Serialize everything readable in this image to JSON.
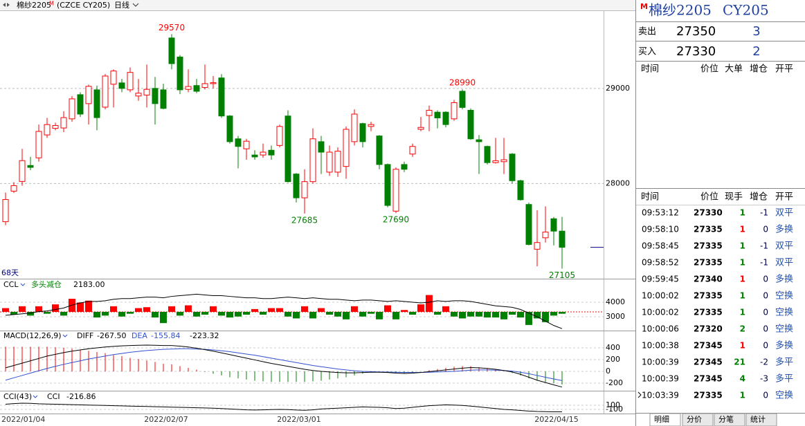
{
  "header": {
    "symbol": "棉纱2205",
    "badge": "M",
    "code": "(CZCE CY205)",
    "period": "日线",
    "days": "68天"
  },
  "chart_data": {
    "type": "candlestick",
    "up_color": "#ff0000",
    "down_color": "#008000",
    "categories": [
      "2022/01/04",
      null,
      null,
      null,
      null,
      null,
      null,
      null,
      null,
      null,
      null,
      null,
      null,
      null,
      null,
      null,
      null,
      null,
      null,
      "2022/02/07",
      null,
      null,
      null,
      null,
      null,
      null,
      null,
      null,
      null,
      null,
      null,
      null,
      null,
      null,
      null,
      "2022/03/01",
      null,
      null,
      null,
      null,
      null,
      null,
      null,
      null,
      null,
      null,
      null,
      null,
      null,
      null,
      null,
      null,
      null,
      null,
      null,
      null,
      null,
      null,
      null,
      null,
      null,
      null,
      null,
      null,
      null,
      null,
      "2022/04/15",
      null
    ],
    "open": [
      27599,
      27920,
      28022,
      28190,
      28270,
      28511,
      28580,
      28584,
      28680,
      28934,
      28840,
      28985,
      28803,
      29044,
      29058,
      28985,
      28920,
      28930,
      29000,
      28985,
      29530,
      29330,
      28990,
      29030,
      29010,
      29050,
      29110,
      28710,
      28470,
      28365,
      28300,
      28300,
      28350,
      28400,
      28710,
      28100,
      27850,
      28020,
      28440,
      28120,
      28120,
      28180,
      28440,
      28630,
      28600,
      28500,
      28200,
      27710,
      28200,
      28310,
      28570,
      28715,
      28750,
      28750,
      28680,
      28970,
      28770,
      28460,
      28390,
      28220,
      28230,
      28310,
      28030,
      27780,
      27310,
      27430,
      27630,
      27500
    ],
    "high": [
      27905,
      28015,
      28365,
      28280,
      28620,
      28690,
      28640,
      28760,
      28920,
      28960,
      29040,
      29030,
      29150,
      29200,
      29100,
      29220,
      29100,
      29250,
      29120,
      29050,
      29570,
      29350,
      29200,
      29100,
      29250,
      29130,
      29150,
      28720,
      28500,
      28470,
      28350,
      28420,
      28400,
      28620,
      28770,
      28110,
      28150,
      28580,
      28500,
      28400,
      28380,
      28600,
      28780,
      28640,
      28650,
      28510,
      28210,
      28170,
      28230,
      28420,
      28700,
      28820,
      28770,
      28760,
      28880,
      28990,
      28790,
      28510,
      28400,
      28480,
      28480,
      28320,
      28040,
      27800,
      27720,
      27760,
      27650,
      27650
    ],
    "low": [
      27562,
      27900,
      27978,
      28140,
      28230,
      28480,
      28560,
      28540,
      28650,
      28700,
      28620,
      28560,
      28780,
      28800,
      28960,
      28960,
      28870,
      28800,
      28620,
      28780,
      29200,
      28940,
      28960,
      28950,
      28990,
      29000,
      28690,
      28420,
      28160,
      28250,
      28250,
      28270,
      28250,
      28380,
      28010,
      27800,
      27685,
      28000,
      28100,
      28080,
      28070,
      28050,
      28400,
      28380,
      28550,
      28150,
      27750,
      27690,
      28120,
      28280,
      28550,
      28550,
      28580,
      28590,
      28660,
      28780,
      28460,
      28100,
      28200,
      28210,
      28100,
      28000,
      27820,
      27350,
      27130,
      27380,
      27350,
      27105
    ],
    "close": [
      27832,
      27978,
      28241,
      28170,
      28548,
      28620,
      28610,
      28693,
      28890,
      28730,
      29022,
      28693,
      29130,
      29183,
      29000,
      29168,
      28950,
      28990,
      28840,
      28790,
      29260,
      28985,
      29020,
      28970,
      29050,
      29060,
      28710,
      28440,
      28390,
      28445,
      28280,
      28330,
      28300,
      28600,
      28020,
      27850,
      28020,
      28470,
      28330,
      28330,
      28340,
      28570,
      28730,
      28440,
      28620,
      28200,
      27770,
      28150,
      28150,
      28390,
      28590,
      28770,
      28690,
      28620,
      28850,
      28800,
      28470,
      28440,
      28220,
      28240,
      28250,
      28030,
      27830,
      27360,
      27380,
      27490,
      27500,
      27330
    ],
    "annotations": [
      29570,
      28990,
      27685,
      27690,
      27105
    ],
    "ylim": [
      27000,
      29820
    ],
    "yticks": [
      28000,
      29000
    ],
    "grid": true,
    "indicators": {
      "ccl": {
        "name": "CCL",
        "status": "多头减仓",
        "value": "2183.00",
        "line_color": "#000000",
        "ylim": [
          2050,
          5520
        ],
        "yticks": [
          3000,
          4000
        ],
        "bar_ylim": [
          -1000,
          1700
        ],
        "line": [
          3100,
          3150,
          3200,
          3250,
          3350,
          3400,
          3500,
          3600,
          3800,
          3950,
          4050,
          4050,
          4100,
          4200,
          4250,
          4250,
          4300,
          4350,
          4350,
          4300,
          4400,
          4450,
          4500,
          4550,
          4500,
          4450,
          4450,
          4400,
          4350,
          4300,
          4300,
          4250,
          4250,
          4300,
          4350,
          4300,
          4250,
          4300,
          4250,
          4200,
          4200,
          4150,
          4100,
          4150,
          4150,
          4100,
          4050,
          4100,
          4050,
          4000,
          3950,
          4000,
          4100,
          4050,
          4100,
          4100,
          4050,
          3950,
          3850,
          3750,
          3700,
          3650,
          3500,
          3250,
          3000,
          2700,
          2400,
          2183
        ],
        "change": [
          200,
          -150,
          300,
          -200,
          300,
          -100,
          400,
          -200,
          700,
          500,
          600,
          -300,
          -200,
          300,
          -250,
          -100,
          200,
          250,
          -300,
          -600,
          300,
          -200,
          350,
          -250,
          -150,
          300,
          -200,
          -300,
          -250,
          -150,
          150,
          -150,
          200,
          200,
          -250,
          -350,
          300,
          -350,
          200,
          -150,
          -250,
          -400,
          300,
          -250,
          -100,
          -400,
          350,
          -400,
          100,
          -150,
          400,
          900,
          -150,
          300,
          -250,
          -350,
          -250,
          -250,
          -300,
          -300,
          -400,
          -150,
          -300,
          -700,
          -350,
          -550,
          -200,
          -100
        ]
      },
      "macd": {
        "name": "MACD(12,26,9)",
        "diff_label": "DIFF",
        "diff_value": "-267.50",
        "dea_label": "DEA",
        "dea_value": "-155.84",
        "macd_value": "-223.32",
        "diff_color": "#000000",
        "dea_color": "#3050d0",
        "ylim": [
          -330,
          530
        ],
        "yticks": [
          -200,
          0,
          200,
          400
        ],
        "diff": [
          60,
          100,
          140,
          180,
          220,
          260,
          290,
          320,
          345,
          365,
          385,
          400,
          415,
          425,
          435,
          440,
          445,
          448,
          445,
          440,
          440,
          430,
          415,
          395,
          370,
          345,
          315,
          285,
          255,
          225,
          195,
          165,
          135,
          110,
          85,
          60,
          35,
          15,
          0,
          -10,
          -20,
          -25,
          -25,
          -20,
          -15,
          -15,
          -20,
          -30,
          -35,
          -30,
          -20,
          -5,
          10,
          25,
          40,
          55,
          65,
          60,
          50,
          35,
          15,
          -10,
          -50,
          -100,
          -150,
          -190,
          -230,
          -267.5
        ],
        "dea": [
          -150,
          -110,
          -70,
          -30,
          10,
          50,
          85,
          120,
          150,
          180,
          210,
          235,
          260,
          285,
          305,
          325,
          340,
          355,
          365,
          375,
          380,
          385,
          385,
          380,
          375,
          365,
          350,
          335,
          315,
          295,
          275,
          250,
          225,
          200,
          175,
          150,
          125,
          100,
          80,
          60,
          40,
          25,
          10,
          0,
          -5,
          -10,
          -12,
          -15,
          -18,
          -20,
          -18,
          -15,
          -10,
          -5,
          0,
          10,
          20,
          25,
          25,
          20,
          15,
          5,
          -15,
          -40,
          -70,
          -100,
          -130,
          -155.84
        ],
        "hist": [
          420,
          420,
          420,
          420,
          420,
          420,
          410,
          400,
          390,
          370,
          350,
          330,
          310,
          280,
          260,
          230,
          210,
          186,
          160,
          130,
          120,
          90,
          60,
          30,
          -10,
          -40,
          -70,
          -100,
          -120,
          -140,
          -160,
          -170,
          -180,
          -180,
          -180,
          -180,
          -180,
          -170,
          -160,
          -140,
          -120,
          -100,
          -70,
          -40,
          -20,
          -10,
          -16,
          -30,
          -34,
          -20,
          -4,
          20,
          40,
          60,
          80,
          90,
          90,
          70,
          50,
          30,
          0,
          -30,
          -70,
          -120,
          -160,
          -180,
          -200,
          -223.32
        ]
      },
      "cci": {
        "name": "CCI(43)",
        "label": "CCI",
        "value": "-216.86",
        "line_color": "#000000",
        "ylim": [
          -300,
          733
        ],
        "yticks": [
          -100,
          100
        ],
        "line": [
          150,
          180,
          200,
          190,
          170,
          160,
          150,
          140,
          130,
          120,
          110,
          100,
          90,
          80,
          70,
          60,
          50,
          40,
          30,
          20,
          10,
          0,
          -10,
          -20,
          -30,
          -40,
          -60,
          -80,
          -100,
          -120,
          -130,
          -120,
          -110,
          -100,
          -110,
          -130,
          -140,
          -120,
          -80,
          -60,
          -40,
          -20,
          0,
          20,
          10,
          0,
          -20,
          -60,
          -40,
          0,
          40,
          80,
          100,
          120,
          110,
          90,
          60,
          20,
          -20,
          -60,
          -100,
          -120,
          -150,
          -180,
          -200,
          -210,
          -215,
          -216.86
        ]
      }
    }
  },
  "quote_panel": {
    "badge": "M",
    "title": "棉纱2205",
    "code": "CY205",
    "ask": {
      "label": "卖出",
      "price": 27350,
      "volume": 3
    },
    "bid": {
      "label": "买入",
      "price": 27330,
      "volume": 2
    },
    "big_order_columns": [
      "时间",
      "价位",
      "大单",
      "增仓",
      "开平"
    ],
    "tick_columns": [
      "时间",
      "价位",
      "现手",
      "增仓",
      "开平"
    ],
    "ticks": [
      [
        "09:53:12",
        27330,
        1,
        -1,
        "双平"
      ],
      [
        "09:58:10",
        27335,
        1,
        0,
        "多换"
      ],
      [
        "09:58:45",
        27335,
        1,
        -1,
        "双平"
      ],
      [
        "09:58:52",
        27335,
        1,
        -1,
        "双平"
      ],
      [
        "09:59:45",
        27340,
        1,
        0,
        "多换"
      ],
      [
        "10:00:02",
        27335,
        1,
        0,
        "空换"
      ],
      [
        "10:00:02",
        27335,
        1,
        0,
        "空换"
      ],
      [
        "10:00:06",
        27320,
        2,
        0,
        "空换"
      ],
      [
        "10:00:38",
        27345,
        1,
        0,
        "多换"
      ],
      [
        "10:00:39",
        27345,
        21,
        -2,
        "多平"
      ],
      [
        "10:00:39",
        27345,
        4,
        -3,
        "多平"
      ],
      [
        "10:03:39",
        27335,
        1,
        0,
        "空换"
      ]
    ],
    "tick_volume_colors": [
      "#008000",
      "#ff0000",
      "#008000",
      "#008000",
      "#ff0000",
      "#008000",
      "#008000",
      "#008000",
      "#ff0000",
      "#008000",
      "#008000",
      "#008000"
    ],
    "tabs": [
      "明细",
      "分价",
      "分笔",
      "统计"
    ]
  }
}
